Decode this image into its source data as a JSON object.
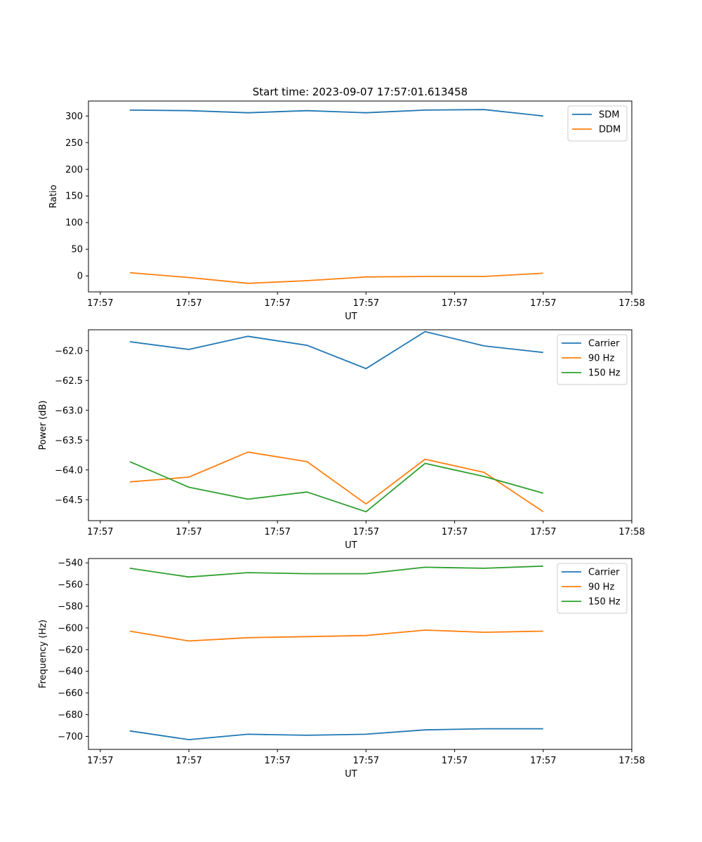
{
  "chart_data": [
    {
      "type": "line",
      "title": "Start time: 2023-09-07 17:57:01.613458",
      "xlabel": "UT",
      "ylabel": "Ratio",
      "xlim": [
        -0.2,
        9.0
      ],
      "ylim": [
        -30,
        328
      ],
      "x_ticks": [
        0,
        1.5,
        3,
        4.5,
        6,
        7.5,
        9
      ],
      "x_tick_labels": [
        "17:57",
        "17:57",
        "17:57",
        "17:57",
        "17:57",
        "17:57",
        "17:58"
      ],
      "y_ticks": [
        0,
        50,
        100,
        150,
        200,
        250,
        300
      ],
      "y_tick_labels": [
        "0",
        "50",
        "100",
        "150",
        "200",
        "250",
        "300"
      ],
      "x": [
        0.5,
        1.5,
        2.5,
        3.5,
        4.5,
        5.5,
        6.5,
        7.5
      ],
      "series": [
        {
          "name": "SDM",
          "color": "#1f77b4",
          "values": [
            311,
            310,
            306,
            310,
            306,
            311,
            312,
            300
          ]
        },
        {
          "name": "DDM",
          "color": "#ff7f0e",
          "values": [
            6,
            -3,
            -14,
            -9,
            -2,
            -1,
            -1,
            5
          ]
        }
      ],
      "legend": "top-right"
    },
    {
      "type": "line",
      "title": "",
      "xlabel": "UT",
      "ylabel": "Power (dB)",
      "xlim": [
        -0.2,
        9.0
      ],
      "ylim": [
        -64.85,
        -61.65
      ],
      "x_ticks": [
        0,
        1.5,
        3,
        4.5,
        6,
        7.5,
        9
      ],
      "x_tick_labels": [
        "17:57",
        "17:57",
        "17:57",
        "17:57",
        "17:57",
        "17:57",
        "17:58"
      ],
      "y_ticks": [
        -62.0,
        -62.5,
        -63.0,
        -63.5,
        -64.0,
        -64.5
      ],
      "y_tick_labels": [
        "−62.0",
        "−62.5",
        "−63.0",
        "−63.5",
        "−64.0",
        "−64.5"
      ],
      "x": [
        0.5,
        1.5,
        2.5,
        3.5,
        4.5,
        5.5,
        6.5,
        7.5
      ],
      "series": [
        {
          "name": "Carrier",
          "color": "#1f77b4",
          "values": [
            -61.85,
            -61.98,
            -61.76,
            -61.91,
            -62.3,
            -61.68,
            -61.92,
            -62.03
          ]
        },
        {
          "name": "90 Hz",
          "color": "#ff7f0e",
          "values": [
            -64.2,
            -64.12,
            -63.7,
            -63.86,
            -64.57,
            -63.82,
            -64.04,
            -64.7
          ]
        },
        {
          "name": "150 Hz",
          "color": "#2ca02c",
          "values": [
            -63.86,
            -64.29,
            -64.49,
            -64.37,
            -64.7,
            -63.89,
            -64.11,
            -64.39
          ]
        }
      ],
      "legend": "top-right"
    },
    {
      "type": "line",
      "title": "",
      "xlabel": "UT",
      "ylabel": "Frequency (Hz)",
      "xlim": [
        -0.2,
        9.0
      ],
      "ylim": [
        -712,
        -536
      ],
      "x_ticks": [
        0,
        1.5,
        3,
        4.5,
        6,
        7.5,
        9
      ],
      "x_tick_labels": [
        "17:57",
        "17:57",
        "17:57",
        "17:57",
        "17:57",
        "17:57",
        "17:58"
      ],
      "y_ticks": [
        -540,
        -560,
        -580,
        -600,
        -620,
        -640,
        -660,
        -680,
        -700
      ],
      "y_tick_labels": [
        "−540",
        "−560",
        "−580",
        "−600",
        "−620",
        "−640",
        "−660",
        "−680",
        "−700"
      ],
      "x": [
        0.5,
        1.5,
        2.5,
        3.5,
        4.5,
        5.5,
        6.5,
        7.5
      ],
      "series": [
        {
          "name": "Carrier",
          "color": "#1f77b4",
          "values": [
            -695,
            -703,
            -698,
            -699,
            -698,
            -694,
            -693,
            -693
          ]
        },
        {
          "name": "90 Hz",
          "color": "#ff7f0e",
          "values": [
            -603,
            -612,
            -609,
            -608,
            -607,
            -602,
            -604,
            -603
          ]
        },
        {
          "name": "150 Hz",
          "color": "#2ca02c",
          "values": [
            -545,
            -553,
            -549,
            -550,
            -550,
            -544,
            -545,
            -543
          ]
        }
      ],
      "legend": "top-right"
    }
  ]
}
